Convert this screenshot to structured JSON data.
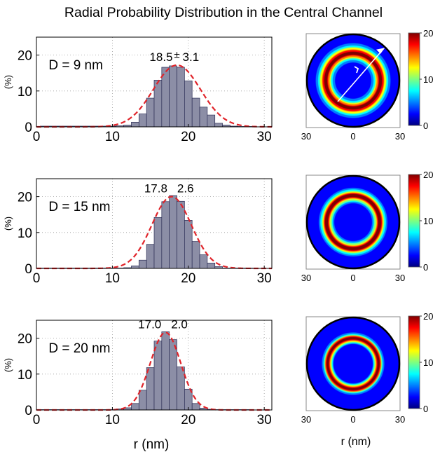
{
  "title": "Radial Probability Distribution in the Central Channel",
  "xlabel_left": "r (nm)",
  "xlabel_right": "r (nm)",
  "colors": {
    "bar_fill": "#8c8ea6",
    "bar_stroke": "#2b2d55",
    "fit_line": "#e0242a",
    "grid": "#9a9a9a",
    "map_background": "#00008f",
    "ring_outer_border": "#000000",
    "arrow": "#ffffff"
  },
  "colormap": {
    "name": "jet",
    "stops": [
      "#00007f",
      "#0000ff",
      "#007fff",
      "#00ffff",
      "#7fff7f",
      "#ffff00",
      "#ff7f00",
      "#ff0000",
      "#7f0000"
    ]
  },
  "chart_data": [
    {
      "type": "bar",
      "label": "D = 9 nm",
      "annotation": [
        "18.5",
        "±",
        "3.1"
      ],
      "ylabel": "(%)",
      "xlim": [
        0,
        31
      ],
      "ylim": [
        0,
        25
      ],
      "xticks": [
        "0",
        "10",
        "20",
        "30"
      ],
      "yticks": [
        "0",
        "10",
        "20"
      ],
      "grid": true,
      "bin_width": 1,
      "bins": [
        {
          "r": 1,
          "p": 0.2
        },
        {
          "r": 2,
          "p": 0.2
        },
        {
          "r": 3,
          "p": 0.2
        },
        {
          "r": 4,
          "p": 0.2
        },
        {
          "r": 5,
          "p": 0.2
        },
        {
          "r": 6,
          "p": 0.2
        },
        {
          "r": 7,
          "p": 0.2
        },
        {
          "r": 8,
          "p": 0.2
        },
        {
          "r": 9,
          "p": 0.2
        },
        {
          "r": 10,
          "p": 0.2
        },
        {
          "r": 11,
          "p": 0.3
        },
        {
          "r": 12,
          "p": 0.5
        },
        {
          "r": 13,
          "p": 1.3
        },
        {
          "r": 14,
          "p": 3.6
        },
        {
          "r": 15,
          "p": 8.0
        },
        {
          "r": 16,
          "p": 13.0
        },
        {
          "r": 17,
          "p": 16.6
        },
        {
          "r": 18,
          "p": 17.0
        },
        {
          "r": 19,
          "p": 16.6
        },
        {
          "r": 20,
          "p": 12.8
        },
        {
          "r": 21,
          "p": 8.0
        },
        {
          "r": 22,
          "p": 5.5
        },
        {
          "r": 23,
          "p": 3.3
        },
        {
          "r": 24,
          "p": 1.0
        },
        {
          "r": 25,
          "p": 0.5
        },
        {
          "r": 26,
          "p": 0.2
        },
        {
          "r": 27,
          "p": 0.1
        },
        {
          "r": 28,
          "p": 0.1
        }
      ],
      "fit": {
        "type": "gaussian",
        "mean": 18.5,
        "sd": 3.1,
        "peak": 17.2
      },
      "map": {
        "ring_center": 18.5,
        "ring_width": 3.1,
        "clim": [
          0,
          20
        ],
        "cbar_ticks": [
          "0",
          "10",
          "20"
        ],
        "xticks": [
          "30",
          "0",
          "30"
        ],
        "arrow": true
      }
    },
    {
      "type": "bar",
      "label": "D = 15 nm",
      "annotation": [
        "17.8",
        "",
        "2.6"
      ],
      "ylabel": "(%)",
      "xlim": [
        0,
        31
      ],
      "ylim": [
        0,
        25
      ],
      "xticks": [
        "0",
        "10",
        "20",
        "30"
      ],
      "yticks": [
        "0",
        "10",
        "20"
      ],
      "grid": true,
      "bin_width": 1,
      "bins": [
        {
          "r": 1,
          "p": 0.1
        },
        {
          "r": 2,
          "p": 0.1
        },
        {
          "r": 3,
          "p": 0.1
        },
        {
          "r": 4,
          "p": 0.1
        },
        {
          "r": 5,
          "p": 0.1
        },
        {
          "r": 6,
          "p": 0.1
        },
        {
          "r": 7,
          "p": 0.1
        },
        {
          "r": 8,
          "p": 0.1
        },
        {
          "r": 9,
          "p": 0.1
        },
        {
          "r": 10,
          "p": 0.1
        },
        {
          "r": 11,
          "p": 0.1
        },
        {
          "r": 12,
          "p": 0.2
        },
        {
          "r": 13,
          "p": 0.7
        },
        {
          "r": 14,
          "p": 2.3
        },
        {
          "r": 15,
          "p": 6.7
        },
        {
          "r": 16,
          "p": 14.2
        },
        {
          "r": 17,
          "p": 18.6
        },
        {
          "r": 18,
          "p": 20.3
        },
        {
          "r": 19,
          "p": 18.7
        },
        {
          "r": 20,
          "p": 13.4
        },
        {
          "r": 21,
          "p": 7.5
        },
        {
          "r": 22,
          "p": 3.8
        },
        {
          "r": 23,
          "p": 1.5
        },
        {
          "r": 24,
          "p": 0.5
        },
        {
          "r": 25,
          "p": 0.1
        },
        {
          "r": 26,
          "p": 0.1
        },
        {
          "r": 27,
          "p": 0.1
        },
        {
          "r": 28,
          "p": 0.1
        }
      ],
      "fit": {
        "type": "gaussian",
        "mean": 17.8,
        "sd": 2.6,
        "peak": 20.0
      },
      "map": {
        "ring_center": 17.8,
        "ring_width": 2.6,
        "clim": [
          0,
          20
        ],
        "cbar_ticks": [
          "0",
          "10",
          "20"
        ],
        "xticks": [
          "30",
          "0",
          "30"
        ],
        "arrow": false
      }
    },
    {
      "type": "bar",
      "label": "D = 20 nm",
      "annotation": [
        "17.0",
        "",
        "2.0"
      ],
      "ylabel": "(%)",
      "xlim": [
        0,
        31
      ],
      "ylim": [
        0,
        25
      ],
      "xticks": [
        "0",
        "10",
        "20",
        "30"
      ],
      "yticks": [
        "0",
        "10",
        "20"
      ],
      "grid": true,
      "bin_width": 1,
      "bins": [
        {
          "r": 1,
          "p": 0.1
        },
        {
          "r": 2,
          "p": 0.1
        },
        {
          "r": 3,
          "p": 0.1
        },
        {
          "r": 4,
          "p": 0.1
        },
        {
          "r": 5,
          "p": 0.1
        },
        {
          "r": 6,
          "p": 0.1
        },
        {
          "r": 7,
          "p": 0.1
        },
        {
          "r": 8,
          "p": 0.1
        },
        {
          "r": 9,
          "p": 0.1
        },
        {
          "r": 10,
          "p": 0.1
        },
        {
          "r": 11,
          "p": 0.3
        },
        {
          "r": 12,
          "p": 0.6
        },
        {
          "r": 13,
          "p": 1.8
        },
        {
          "r": 14,
          "p": 5.5
        },
        {
          "r": 15,
          "p": 11.8
        },
        {
          "r": 16,
          "p": 19.2
        },
        {
          "r": 17,
          "p": 21.8
        },
        {
          "r": 18,
          "p": 19.6
        },
        {
          "r": 19,
          "p": 12.0
        },
        {
          "r": 20,
          "p": 5.8
        },
        {
          "r": 21,
          "p": 1.8
        },
        {
          "r": 22,
          "p": 0.5
        },
        {
          "r": 23,
          "p": 0.2
        },
        {
          "r": 24,
          "p": 0.1
        },
        {
          "r": 25,
          "p": 0.1
        },
        {
          "r": 26,
          "p": 0.1
        },
        {
          "r": 27,
          "p": 0.1
        },
        {
          "r": 28,
          "p": 0.1
        }
      ],
      "fit": {
        "type": "gaussian",
        "mean": 17.0,
        "sd": 2.0,
        "peak": 21.6
      },
      "map": {
        "ring_center": 17.0,
        "ring_width": 2.0,
        "clim": [
          0,
          20
        ],
        "cbar_ticks": [
          "0",
          "10",
          "20"
        ],
        "xticks": [
          "30",
          "0",
          "30"
        ],
        "arrow": false
      }
    }
  ]
}
